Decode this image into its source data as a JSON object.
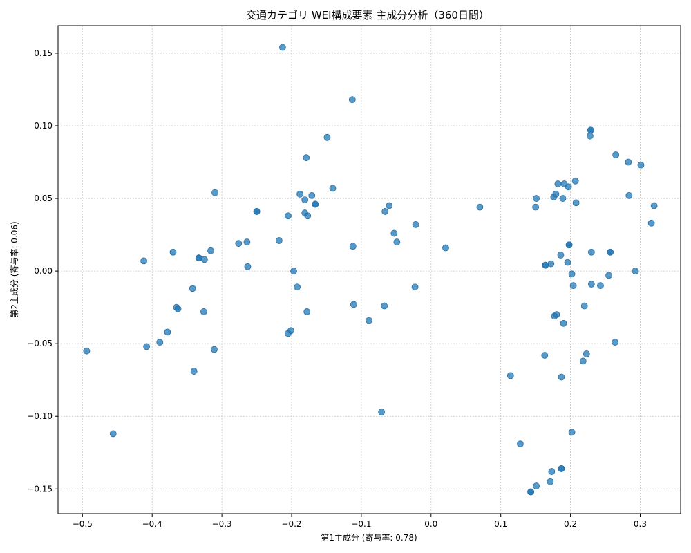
{
  "chart_data": {
    "type": "scatter",
    "title": "交通カテゴリ WEI構成要素 主成分分析（360日間）",
    "xlabel": "第1主成分 (寄与率: 0.78)",
    "ylabel": "第2主成分 (寄与率: 0.06)",
    "xlim": [
      -0.535,
      0.358
    ],
    "ylim": [
      -0.167,
      0.169
    ],
    "xticks": [
      -0.5,
      -0.4,
      -0.3,
      -0.2,
      -0.1,
      0.0,
      0.1,
      0.2,
      0.3
    ],
    "xtick_labels": [
      "−0.5",
      "−0.4",
      "−0.3",
      "−0.2",
      "−0.1",
      "0.0",
      "0.1",
      "0.2",
      "0.3"
    ],
    "yticks": [
      -0.15,
      -0.1,
      -0.05,
      0.0,
      0.05,
      0.1,
      0.15
    ],
    "ytick_labels": [
      "−0.15",
      "−0.10",
      "−0.05",
      "0.00",
      "0.05",
      "0.10",
      "0.15"
    ],
    "grid": true,
    "color": "#1f77b4",
    "points": [
      [
        -0.213,
        0.154
      ],
      [
        -0.113,
        0.118
      ],
      [
        -0.149,
        0.092
      ],
      [
        -0.179,
        0.078
      ],
      [
        -0.141,
        0.057
      ],
      [
        -0.31,
        0.054
      ],
      [
        -0.188,
        0.053
      ],
      [
        -0.171,
        0.052
      ],
      [
        -0.181,
        0.049
      ],
      [
        -0.166,
        0.046
      ],
      [
        -0.166,
        0.046
      ],
      [
        -0.25,
        0.041
      ],
      [
        -0.25,
        0.041
      ],
      [
        -0.205,
        0.038
      ],
      [
        -0.181,
        0.04
      ],
      [
        -0.177,
        0.038
      ],
      [
        -0.218,
        0.021
      ],
      [
        -0.264,
        0.02
      ],
      [
        -0.276,
        0.019
      ],
      [
        -0.316,
        0.014
      ],
      [
        -0.37,
        0.013
      ],
      [
        -0.333,
        0.009
      ],
      [
        -0.333,
        0.009
      ],
      [
        -0.325,
        0.008
      ],
      [
        -0.412,
        0.007
      ],
      [
        -0.263,
        0.003
      ],
      [
        -0.197,
        0.0
      ],
      [
        -0.192,
        -0.011
      ],
      [
        -0.342,
        -0.012
      ],
      [
        -0.365,
        -0.025
      ],
      [
        -0.363,
        -0.026
      ],
      [
        -0.326,
        -0.028
      ],
      [
        -0.178,
        -0.028
      ],
      [
        -0.201,
        -0.041
      ],
      [
        -0.205,
        -0.043
      ],
      [
        -0.378,
        -0.042
      ],
      [
        -0.389,
        -0.049
      ],
      [
        -0.408,
        -0.052
      ],
      [
        -0.311,
        -0.054
      ],
      [
        -0.494,
        -0.055
      ],
      [
        -0.34,
        -0.069
      ],
      [
        -0.456,
        -0.112
      ],
      [
        -0.112,
        0.017
      ],
      [
        -0.111,
        -0.023
      ],
      [
        -0.089,
        -0.034
      ],
      [
        -0.067,
        -0.024
      ],
      [
        -0.071,
        -0.097
      ],
      [
        -0.06,
        0.045
      ],
      [
        -0.066,
        0.041
      ],
      [
        -0.053,
        0.026
      ],
      [
        -0.049,
        0.02
      ],
      [
        -0.022,
        0.032
      ],
      [
        -0.023,
        -0.011
      ],
      [
        0.021,
        0.016
      ],
      [
        0.07,
        0.044
      ],
      [
        0.114,
        -0.072
      ],
      [
        0.128,
        -0.119
      ],
      [
        0.143,
        -0.152
      ],
      [
        0.143,
        -0.152
      ],
      [
        0.151,
        -0.148
      ],
      [
        0.171,
        -0.145
      ],
      [
        0.173,
        -0.138
      ],
      [
        0.187,
        -0.136
      ],
      [
        0.187,
        -0.136
      ],
      [
        0.202,
        -0.111
      ],
      [
        0.187,
        -0.073
      ],
      [
        0.163,
        -0.058
      ],
      [
        0.151,
        0.05
      ],
      [
        0.15,
        0.044
      ],
      [
        0.182,
        0.06
      ],
      [
        0.191,
        0.06
      ],
      [
        0.197,
        0.058
      ],
      [
        0.207,
        0.062
      ],
      [
        0.179,
        0.053
      ],
      [
        0.176,
        0.051
      ],
      [
        0.189,
        0.05
      ],
      [
        0.208,
        0.047
      ],
      [
        0.198,
        0.018
      ],
      [
        0.198,
        0.018
      ],
      [
        0.186,
        0.011
      ],
      [
        0.196,
        0.006
      ],
      [
        0.172,
        0.005
      ],
      [
        0.164,
        0.004
      ],
      [
        0.164,
        0.004
      ],
      [
        0.202,
        -0.002
      ],
      [
        0.204,
        -0.01
      ],
      [
        0.229,
        0.097
      ],
      [
        0.229,
        0.097
      ],
      [
        0.228,
        0.093
      ],
      [
        0.265,
        0.08
      ],
      [
        0.283,
        0.075
      ],
      [
        0.301,
        0.073
      ],
      [
        0.284,
        0.052
      ],
      [
        0.32,
        0.045
      ],
      [
        0.316,
        0.033
      ],
      [
        0.257,
        0.013
      ],
      [
        0.257,
        0.013
      ],
      [
        0.23,
        0.013
      ],
      [
        0.293,
        0.0
      ],
      [
        0.255,
        -0.003
      ],
      [
        0.23,
        -0.009
      ],
      [
        0.243,
        -0.01
      ],
      [
        0.22,
        -0.024
      ],
      [
        0.18,
        -0.03
      ],
      [
        0.177,
        -0.031
      ],
      [
        0.19,
        -0.036
      ],
      [
        0.264,
        -0.049
      ],
      [
        0.223,
        -0.057
      ],
      [
        0.218,
        -0.062
      ]
    ]
  }
}
